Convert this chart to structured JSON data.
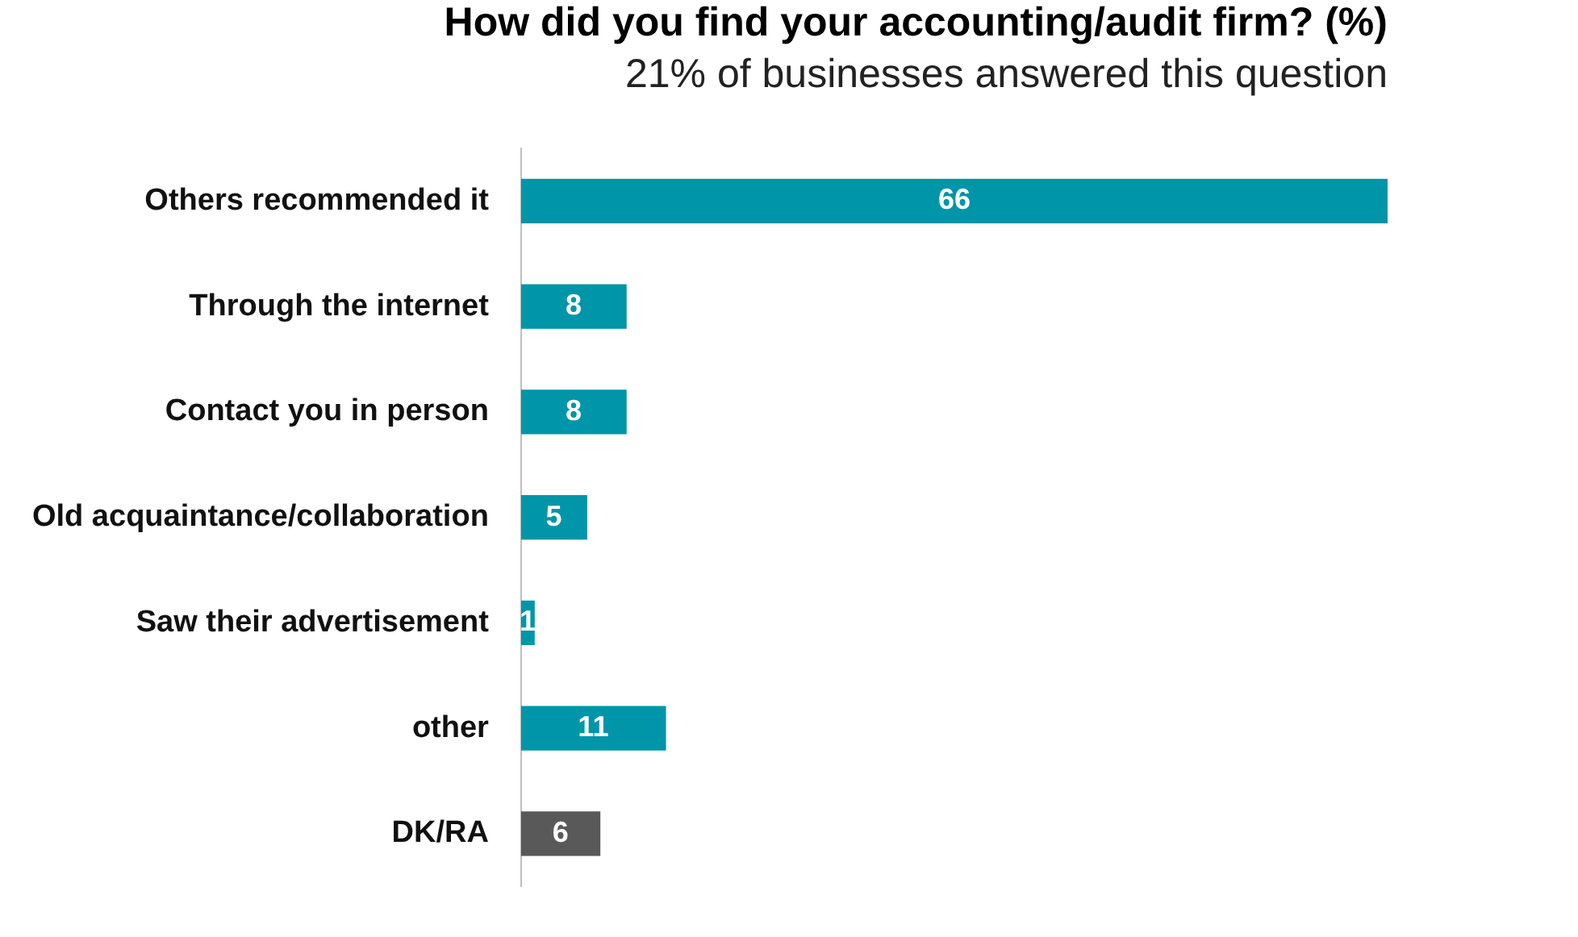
{
  "chart_data": {
    "type": "bar",
    "orientation": "horizontal",
    "title": "How did you find your accounting/audit firm? (%)",
    "subtitle": "21% of businesses answered this question",
    "categories": [
      "Others recommended it",
      "Through the internet",
      "Contact you in person",
      "Old acquaintance/collaboration",
      "Saw their advertisement",
      "other",
      "DK/RA"
    ],
    "values": [
      66,
      8,
      8,
      5,
      1,
      11,
      6
    ],
    "colors": [
      "#0095a8",
      "#0095a8",
      "#0095a8",
      "#0095a8",
      "#0095a8",
      "#0095a8",
      "#595959"
    ],
    "data_labels": true,
    "grid": false,
    "legend": false
  }
}
